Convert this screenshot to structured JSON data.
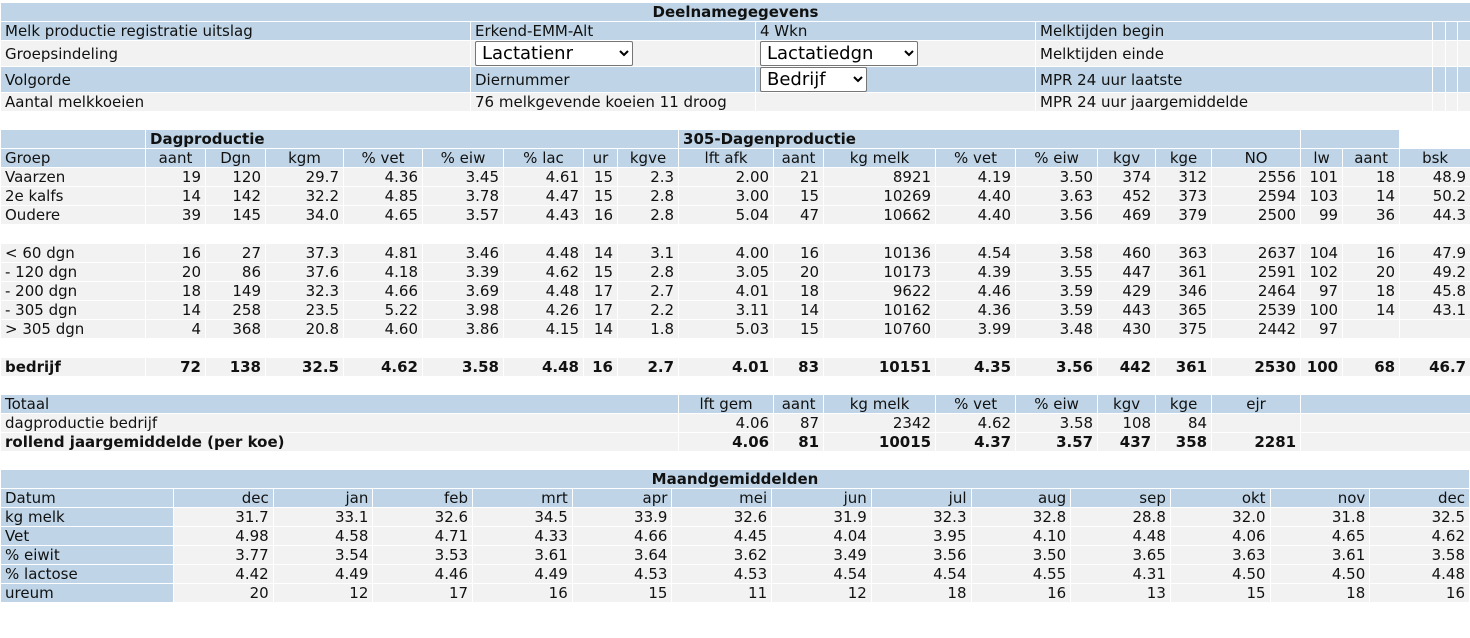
{
  "deelname": {
    "title": "Deelnamegegevens",
    "rows": [
      [
        "Melk productie registratie uitslag",
        "Erkend-EMM-Alt",
        "4 Wkn",
        "Melktijden begin"
      ],
      [
        "Groepsindeling",
        {
          "select": "Lactatienr"
        },
        {
          "select": "Lactatiedgn"
        },
        "Melktijden einde"
      ],
      [
        "Volgorde",
        "Diernummer",
        {
          "select": "Bedrijf"
        },
        "MPR 24 uur laatste"
      ],
      [
        "Aantal melkkoeien",
        "76 melkgevende koeien 11 droog",
        null,
        "MPR 24 uur jaargemiddelde"
      ]
    ]
  },
  "productie": {
    "dagproductie": "Dagproductie",
    "dagen305": "305-Dagenproductie",
    "headers": [
      "Groep",
      "aant",
      "Dgn",
      "kgm",
      "% vet",
      "% eiw",
      "% lac",
      "ur",
      "kgve",
      "lft afk",
      "aant",
      "kg melk",
      "% vet",
      "% eiw",
      "kgv",
      "kge",
      "NO",
      "lw",
      "aant",
      "bsk"
    ],
    "lactatie": [
      [
        "Vaarzen",
        "19",
        "120",
        "29.7",
        "4.36",
        "3.45",
        "4.61",
        "15",
        "2.3",
        "2.00",
        "21",
        "8921",
        "4.19",
        "3.50",
        "374",
        "312",
        "2556",
        "101",
        "18",
        "48.9"
      ],
      [
        "2e kalfs",
        "14",
        "142",
        "32.2",
        "4.85",
        "3.78",
        "4.47",
        "15",
        "2.8",
        "3.00",
        "15",
        "10269",
        "4.40",
        "3.63",
        "452",
        "373",
        "2594",
        "103",
        "14",
        "50.2"
      ],
      [
        "Oudere",
        "39",
        "145",
        "34.0",
        "4.65",
        "3.57",
        "4.43",
        "16",
        "2.8",
        "5.04",
        "47",
        "10662",
        "4.40",
        "3.56",
        "469",
        "379",
        "2500",
        "99",
        "36",
        "44.3"
      ]
    ],
    "stadium": [
      [
        "< 60 dgn",
        "16",
        "27",
        "37.3",
        "4.81",
        "3.46",
        "4.48",
        "14",
        "3.1",
        "4.00",
        "16",
        "10136",
        "4.54",
        "3.58",
        "460",
        "363",
        "2637",
        "104",
        "16",
        "47.9"
      ],
      [
        "- 120 dgn",
        "20",
        "86",
        "37.6",
        "4.18",
        "3.39",
        "4.62",
        "15",
        "2.8",
        "3.05",
        "20",
        "10173",
        "4.39",
        "3.55",
        "447",
        "361",
        "2591",
        "102",
        "20",
        "49.2"
      ],
      [
        "- 200 dgn",
        "18",
        "149",
        "32.3",
        "4.66",
        "3.69",
        "4.48",
        "17",
        "2.7",
        "4.01",
        "18",
        "9622",
        "4.46",
        "3.59",
        "429",
        "346",
        "2464",
        "97",
        "18",
        "45.8"
      ],
      [
        "- 305 dgn",
        "14",
        "258",
        "23.5",
        "5.22",
        "3.98",
        "4.26",
        "17",
        "2.2",
        "3.11",
        "14",
        "10162",
        "4.36",
        "3.59",
        "443",
        "365",
        "2539",
        "100",
        "14",
        "43.1"
      ],
      [
        "> 305 dgn",
        "4",
        "368",
        "20.8",
        "4.60",
        "3.86",
        "4.15",
        "14",
        "1.8",
        "5.03",
        "15",
        "10760",
        "3.99",
        "3.48",
        "430",
        "375",
        "2442",
        "97",
        null,
        null
      ]
    ],
    "bedrijf": [
      "bedrijf",
      "72",
      "138",
      "32.5",
      "4.62",
      "3.58",
      "4.48",
      "16",
      "2.7",
      "4.01",
      "83",
      "10151",
      "4.35",
      "3.56",
      "442",
      "361",
      "2530",
      "100",
      "68",
      "46.7"
    ]
  },
  "totaal": {
    "headers": [
      "Totaal",
      "lft gem",
      "aant",
      "kg melk",
      "% vet",
      "% eiw",
      "kgv",
      "kge",
      "ejr"
    ],
    "rows": [
      [
        "dagproductie bedrijf",
        "4.06",
        "87",
        "2342",
        "4.62",
        "3.58",
        "108",
        "84",
        null
      ],
      [
        "rollend jaargemiddelde (per koe)",
        "4.06",
        "81",
        "10015",
        "4.37",
        "3.57",
        "437",
        "358",
        "2281"
      ]
    ]
  },
  "maand": {
    "title": "Maandgemiddelden",
    "headers": [
      "Datum",
      "dec",
      "jan",
      "feb",
      "mrt",
      "apr",
      "mei",
      "jun",
      "jul",
      "aug",
      "sep",
      "okt",
      "nov",
      "dec"
    ],
    "rows": [
      [
        "kg melk",
        "31.7",
        "33.1",
        "32.6",
        "34.5",
        "33.9",
        "32.6",
        "31.9",
        "32.3",
        "32.8",
        "28.8",
        "32.0",
        "31.8",
        "32.5"
      ],
      [
        "Vet",
        "4.98",
        "4.58",
        "4.71",
        "4.33",
        "4.66",
        "4.45",
        "4.04",
        "3.95",
        "4.10",
        "4.48",
        "4.06",
        "4.65",
        "4.62"
      ],
      [
        "% eiwit",
        "3.77",
        "3.54",
        "3.53",
        "3.61",
        "3.64",
        "3.62",
        "3.49",
        "3.56",
        "3.50",
        "3.65",
        "3.63",
        "3.61",
        "3.58"
      ],
      [
        "% lactose",
        "4.42",
        "4.49",
        "4.46",
        "4.49",
        "4.53",
        "4.53",
        "4.54",
        "4.54",
        "4.55",
        "4.31",
        "4.50",
        "4.50",
        "4.48"
      ],
      [
        "ureum",
        "20",
        "12",
        "17",
        "16",
        "15",
        "11",
        "12",
        "18",
        "16",
        "13",
        "15",
        "18",
        "16"
      ]
    ]
  }
}
